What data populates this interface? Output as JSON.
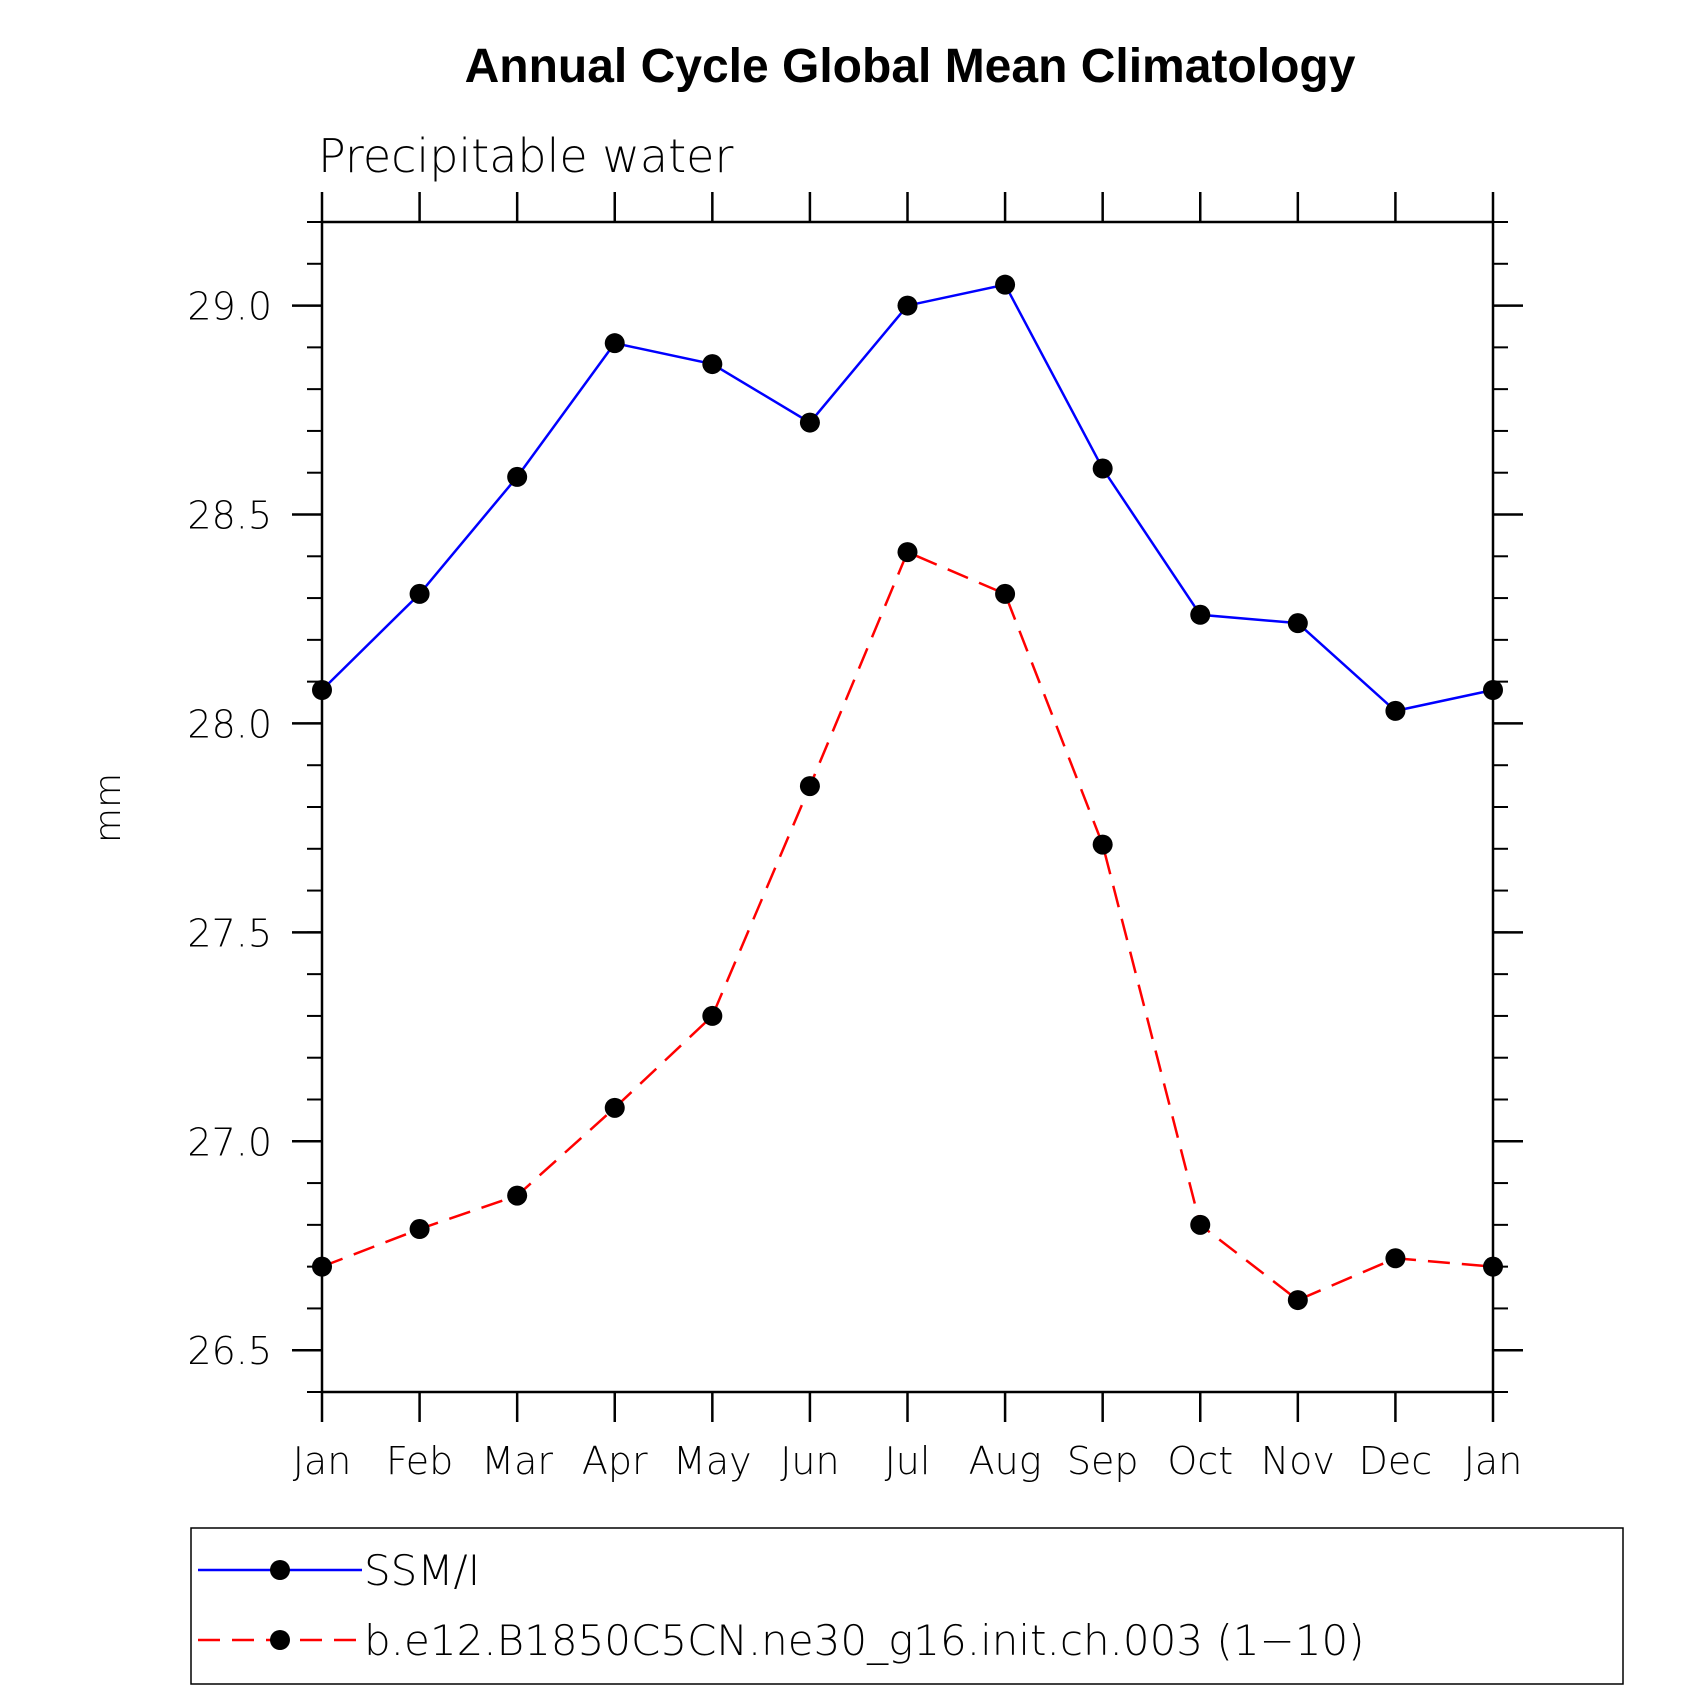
{
  "chart_data": {
    "type": "line",
    "title": "Annual Cycle Global Mean Climatology",
    "subtitle": "Precipitable water",
    "xlabel": "",
    "ylabel": "mm",
    "categories": [
      "Jan",
      "Feb",
      "Mar",
      "Apr",
      "May",
      "Jun",
      "Jul",
      "Aug",
      "Sep",
      "Oct",
      "Nov",
      "Dec",
      "Jan"
    ],
    "ylim": [
      26.4,
      29.2
    ],
    "y_ticks": [
      "26.5",
      "27.0",
      "27.5",
      "28.0",
      "28.5",
      "29.0"
    ],
    "y_minor_step": 0.1,
    "grid": false,
    "legend_position": "bottom",
    "series": [
      {
        "name": "SSM/I",
        "color": "#0000ff",
        "dash": "solid",
        "values": [
          28.08,
          28.31,
          28.59,
          28.91,
          28.86,
          28.72,
          29.0,
          29.05,
          28.61,
          28.26,
          28.24,
          28.03,
          28.08
        ]
      },
      {
        "name": "b.e12.B1850C5CN.ne30_g16.init.ch.003 (1−10)",
        "color": "#ff0000",
        "dash": "dashed",
        "values": [
          26.7,
          26.79,
          26.87,
          27.08,
          27.3,
          27.85,
          28.41,
          28.31,
          27.71,
          26.8,
          26.62,
          26.72,
          26.7
        ]
      }
    ],
    "marker_color": "#000000"
  }
}
